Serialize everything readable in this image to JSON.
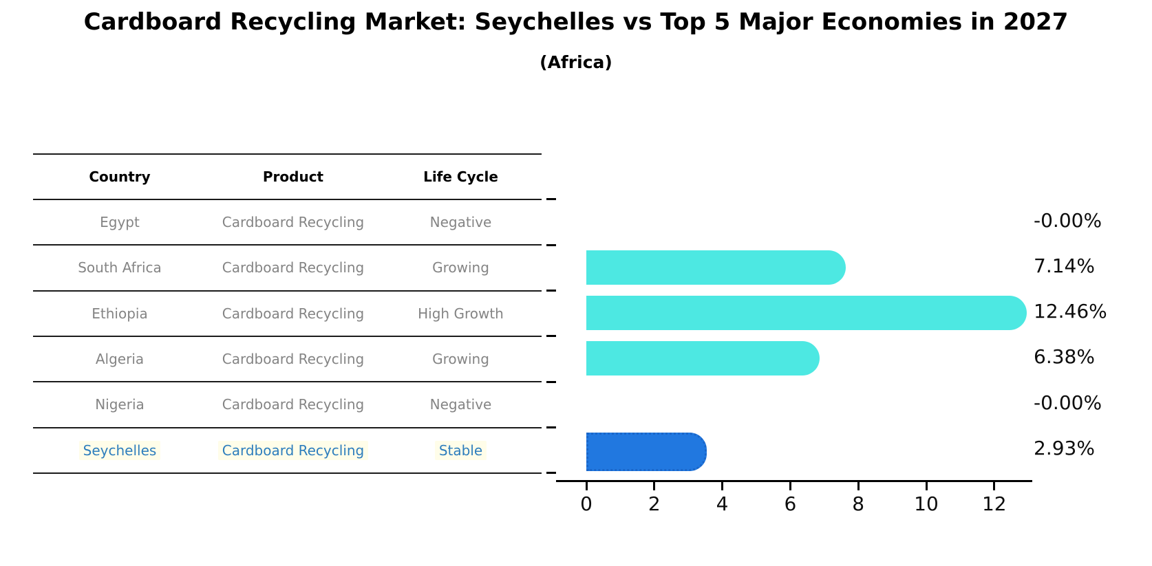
{
  "title": "Cardboard Recycling Market: Seychelles vs Top 5 Major Economies in 2027",
  "subtitle": "(Africa)",
  "table": {
    "headers": [
      "Country",
      "Product",
      "Life Cycle"
    ],
    "rows": [
      {
        "country": "Egypt",
        "product": "Cardboard Recycling",
        "life_cycle": "Negative",
        "highlighted": false
      },
      {
        "country": "South Africa",
        "product": "Cardboard Recycling",
        "life_cycle": "Growing",
        "highlighted": false
      },
      {
        "country": "Ethiopia",
        "product": "Cardboard Recycling",
        "life_cycle": "High Growth",
        "highlighted": false
      },
      {
        "country": "Algeria",
        "product": "Cardboard Recycling",
        "life_cycle": "Growing",
        "highlighted": false
      },
      {
        "country": "Nigeria",
        "product": "Cardboard Recycling",
        "life_cycle": "Negative",
        "highlighted": false
      },
      {
        "country": "Seychelles",
        "product": "Cardboard Recycling",
        "life_cycle": "Stable",
        "highlighted": true
      }
    ]
  },
  "chart_data": {
    "type": "bar",
    "orientation": "horizontal",
    "title": "Cardboard Recycling Market: Seychelles vs Top 5 Major Economies in 2027",
    "subtitle": "(Africa)",
    "categories": [
      "Egypt",
      "South Africa",
      "Ethiopia",
      "Algeria",
      "Nigeria",
      "Seychelles"
    ],
    "values": [
      -0.0,
      7.14,
      12.46,
      6.38,
      -0.0,
      2.93
    ],
    "value_labels": [
      "-0.00%",
      "7.14%",
      "12.46%",
      "6.38%",
      "-0.00%",
      "2.93%"
    ],
    "x_ticks": [
      0,
      2,
      4,
      6,
      8,
      10,
      12
    ],
    "x_tick_labels": [
      "0",
      "2",
      "4",
      "6",
      "8",
      "10",
      "12"
    ],
    "xlim": [
      0,
      13.1
    ],
    "grid": false,
    "legend": "none",
    "highlight_index": 5
  },
  "colors": {
    "bar": "#4de8e2",
    "highlight_bar": "#2178e0",
    "highlight_bar_border": "#1a66c9",
    "highlight_text": "#2e7ebd",
    "table_text": "#848484",
    "axis": "#000000"
  }
}
